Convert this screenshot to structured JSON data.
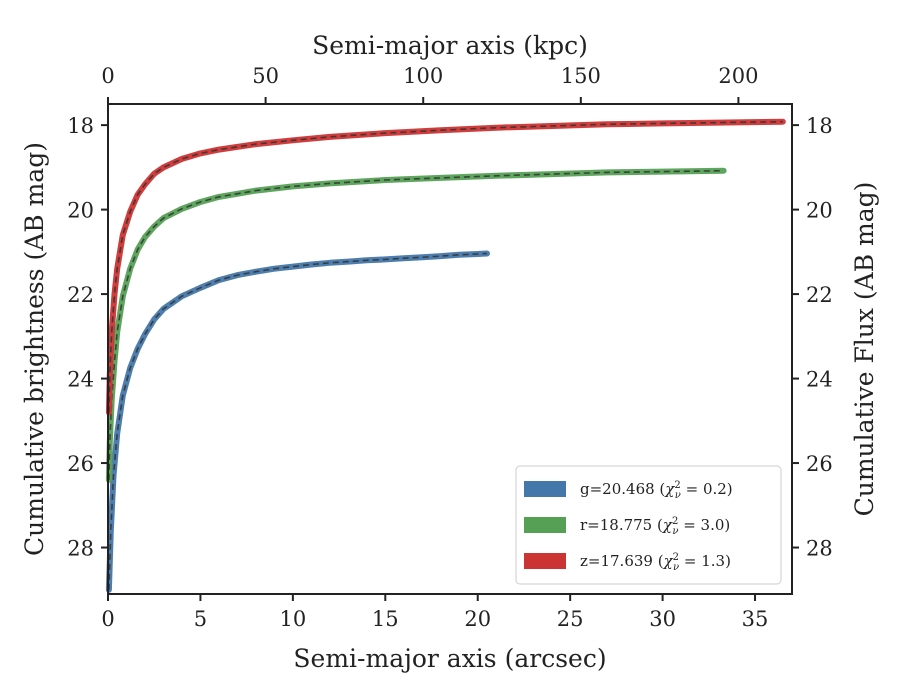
{
  "chart_data": {
    "type": "line",
    "xlabel": "Semi-major axis (arcsec)",
    "ylabel": "Cumulative brightness (AB mag)",
    "x2label": "Semi-major axis (kpc)",
    "y2label": "Cumulative Flux (AB mag)",
    "xlim": [
      0,
      37
    ],
    "ylim": [
      29.1,
      17.5
    ],
    "y_inverted": true,
    "x2lim": [
      0,
      217
    ],
    "xticks": [
      0,
      5,
      10,
      15,
      20,
      25,
      30,
      35
    ],
    "yticks": [
      18,
      20,
      22,
      24,
      26,
      28
    ],
    "x2ticks": [
      0,
      50,
      100,
      150,
      200
    ],
    "grid": false,
    "legend_position": "lower-right",
    "series": [
      {
        "name": "g=20.468 (χ²_ν = 0.2)",
        "label_prefix": "g=20.468 (",
        "label_chi": "χ",
        "label_sup": "2",
        "label_sub": "ν",
        "label_suffix": " = 0.2)",
        "color": "#4477aa",
        "x": [
          0.05,
          0.15,
          0.3,
          0.5,
          0.8,
          1.2,
          1.6,
          2.0,
          2.5,
          3.0,
          3.5,
          4.0,
          5.0,
          6.0,
          7.0,
          8.0,
          9.0,
          10.0,
          11.0,
          12.0,
          13.0,
          14.0,
          15.0,
          16.0,
          17.0,
          18.0,
          19.0,
          20.0,
          20.5
        ],
        "y": [
          29.0,
          27.6,
          26.3,
          25.3,
          24.4,
          23.75,
          23.3,
          22.95,
          22.6,
          22.35,
          22.2,
          22.05,
          21.85,
          21.67,
          21.55,
          21.47,
          21.4,
          21.35,
          21.3,
          21.26,
          21.23,
          21.2,
          21.18,
          21.15,
          21.13,
          21.1,
          21.07,
          21.05,
          21.04
        ]
      },
      {
        "name": "r=18.775 (χ²_ν = 3.0)",
        "label_prefix": "r=18.775 (",
        "label_chi": "χ",
        "label_sup": "2",
        "label_sub": "ν",
        "label_suffix": " = 3.0)",
        "color": "#55a055",
        "x": [
          0.05,
          0.1,
          0.2,
          0.35,
          0.5,
          0.8,
          1.2,
          1.6,
          2.0,
          2.5,
          3.0,
          4.0,
          5.0,
          6.0,
          8.0,
          10.0,
          12.0,
          15.0,
          18.0,
          21.0,
          24.0,
          27.0,
          30.0,
          33.3
        ],
        "y": [
          26.4,
          25.5,
          24.5,
          23.6,
          22.9,
          22.05,
          21.4,
          20.95,
          20.65,
          20.4,
          20.2,
          19.98,
          19.82,
          19.7,
          19.55,
          19.45,
          19.38,
          19.3,
          19.25,
          19.2,
          19.16,
          19.12,
          19.1,
          19.08
        ]
      },
      {
        "name": "z=17.639 (χ²_ν = 1.3)",
        "label_prefix": "z=17.639 (",
        "label_chi": "χ",
        "label_sup": "2",
        "label_sub": "ν",
        "label_suffix": " = 1.3)",
        "color": "#cc3333",
        "x": [
          0.05,
          0.1,
          0.2,
          0.35,
          0.5,
          0.8,
          1.2,
          1.6,
          2.0,
          2.5,
          3.0,
          4.0,
          5.0,
          6.0,
          8.0,
          10.0,
          12.0,
          15.0,
          18.0,
          21.0,
          24.0,
          27.0,
          30.0,
          33.0,
          36.5
        ],
        "y": [
          24.8,
          23.9,
          22.9,
          22.0,
          21.4,
          20.6,
          20.05,
          19.65,
          19.4,
          19.15,
          19.0,
          18.8,
          18.67,
          18.58,
          18.45,
          18.36,
          18.28,
          18.19,
          18.12,
          18.06,
          18.02,
          17.98,
          17.96,
          17.94,
          17.92
        ]
      }
    ]
  }
}
